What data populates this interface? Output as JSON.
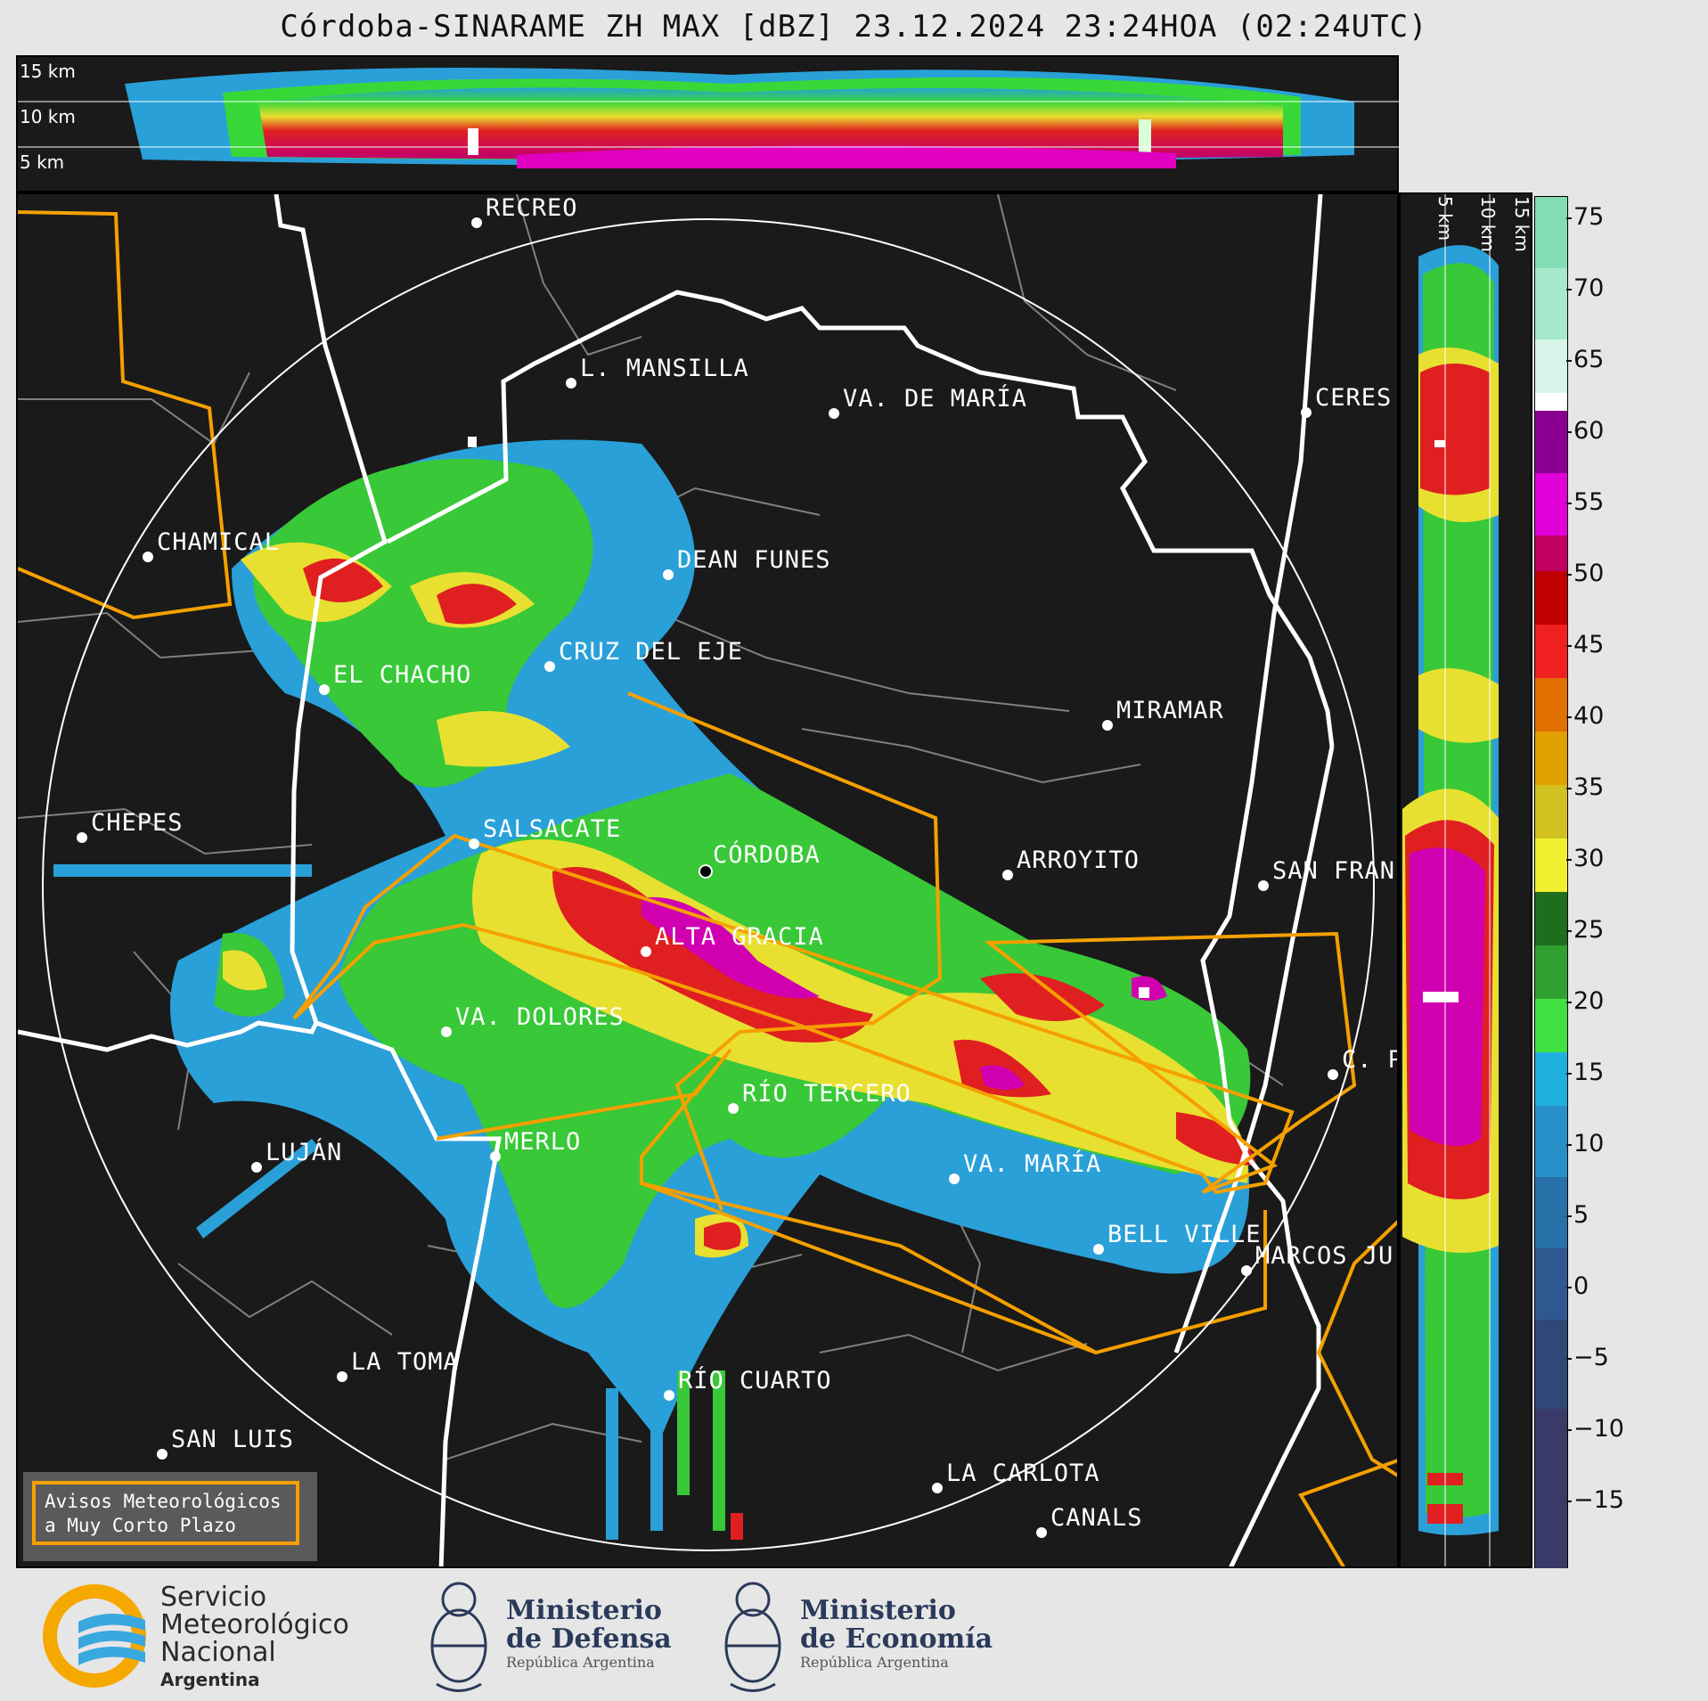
{
  "title": "Córdoba-SINARAME ZH MAX [dBZ] 23.12.2024 23:24HOA (02:24UTC)",
  "top_section": {
    "height_labels": [
      "15 km",
      "10 km",
      "5 km"
    ]
  },
  "side_section": {
    "height_labels": [
      "5 km",
      "10 km",
      "15 km"
    ]
  },
  "colorbar": {
    "ticks": [
      "75",
      "70",
      "65",
      "60",
      "55",
      "50",
      "45",
      "40",
      "35",
      "30",
      "25",
      "20",
      "15",
      "10",
      "5",
      "0",
      "−5",
      "−10",
      "−15"
    ],
    "unit": "dBZ"
  },
  "cities": [
    {
      "name": "RECREO"
    },
    {
      "name": "L. MANSILLA"
    },
    {
      "name": "VA. DE MARÍA"
    },
    {
      "name": "CERES"
    },
    {
      "name": "CHAMICAL"
    },
    {
      "name": "DEAN FUNES"
    },
    {
      "name": "CRUZ DEL EJE"
    },
    {
      "name": "EL CHACHO"
    },
    {
      "name": "MIRAMAR"
    },
    {
      "name": "CHEPES"
    },
    {
      "name": "SALSACATE"
    },
    {
      "name": "CÓRDOBA"
    },
    {
      "name": "ARROYITO"
    },
    {
      "name": "SAN FRAN"
    },
    {
      "name": "ALTA GRACIA"
    },
    {
      "name": "VA. DOLORES"
    },
    {
      "name": "C. P"
    },
    {
      "name": "RÍO TERCERO"
    },
    {
      "name": "MERLO"
    },
    {
      "name": "LUJÁN"
    },
    {
      "name": "VA. MARÍA"
    },
    {
      "name": "BELL VILLE"
    },
    {
      "name": "MARCOS JU"
    },
    {
      "name": "LA TOMA"
    },
    {
      "name": "RÍO CUARTO"
    },
    {
      "name": "SAN LUIS"
    },
    {
      "name": "LA CARLOTA"
    },
    {
      "name": "CANALS"
    }
  ],
  "legend": {
    "line1": "Avisos Meteorológicos",
    "line2": "a Muy Corto Plazo"
  },
  "footer": {
    "smn": {
      "line1": "Servicio",
      "line2": "Meteorológico",
      "line3": "Nacional",
      "line4": "Argentina"
    },
    "defensa": {
      "line1": "Ministerio",
      "line2": "de Defensa",
      "line3": "República Argentina"
    },
    "economia": {
      "line1": "Ministerio",
      "line2": "de Economía",
      "line3": "República Argentina"
    }
  },
  "colors": {
    "background": "#1a1a1a",
    "warning_polygon": "#f5a000",
    "range_ring": "#ffffff",
    "province_border": "#ffffff",
    "department_border": "#808080"
  }
}
